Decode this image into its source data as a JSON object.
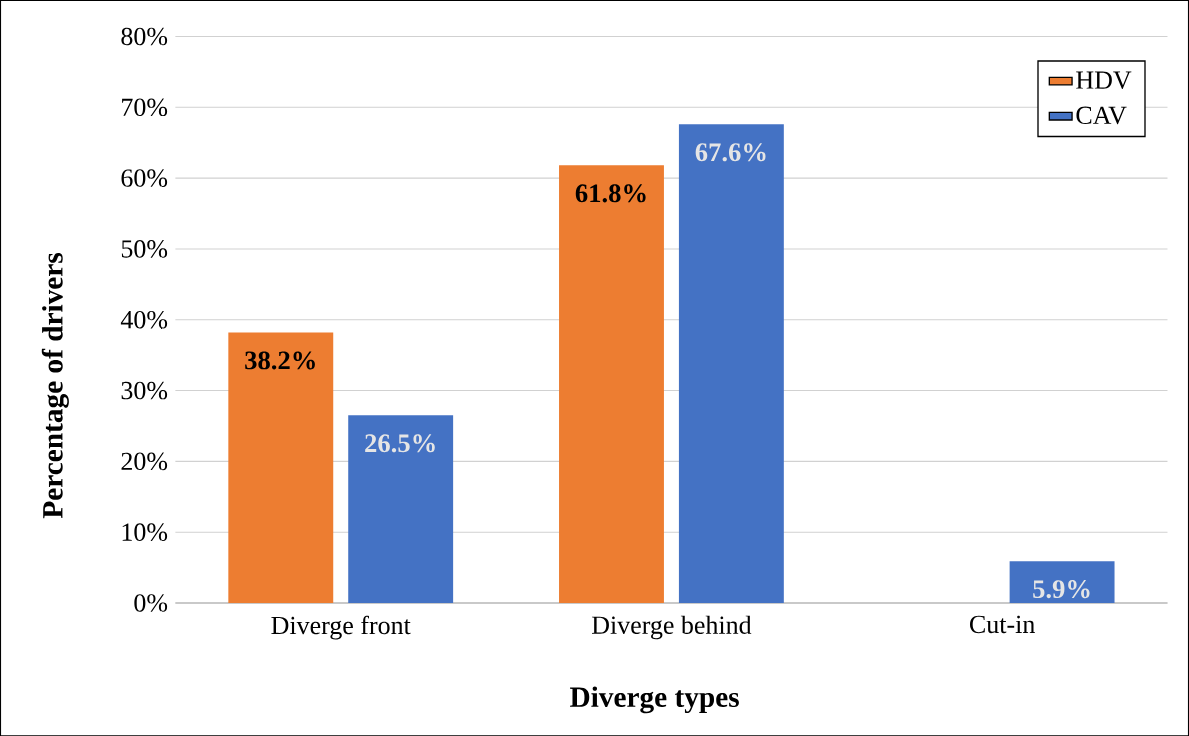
{
  "chart_data": {
    "type": "bar",
    "xlabel": "Diverge types",
    "ylabel": "Percentage of drivers",
    "categories": [
      "Diverge front",
      "Diverge behind",
      "Cut-in"
    ],
    "series": [
      {
        "name": "HDV",
        "color": "#ed7d31",
        "values": [
          38.2,
          61.8,
          null
        ],
        "value_labels": [
          "38.2%",
          "61.8%",
          null
        ]
      },
      {
        "name": "CAV",
        "color": "#4472c4",
        "values": [
          26.5,
          67.6,
          5.9
        ],
        "value_labels": [
          "26.5%",
          "67.6%",
          "5.9%"
        ]
      }
    ],
    "ylim": [
      0,
      80
    ],
    "yticks": [
      {
        "value": 0,
        "label": "0%"
      },
      {
        "value": 10,
        "label": "10%"
      },
      {
        "value": 20,
        "label": "20%"
      },
      {
        "value": 30,
        "label": "30%"
      },
      {
        "value": 40,
        "label": "40%"
      },
      {
        "value": 50,
        "label": "50%"
      },
      {
        "value": 60,
        "label": "60%"
      },
      {
        "value": 70,
        "label": "70%"
      },
      {
        "value": 80,
        "label": "80%"
      }
    ],
    "grid": "y",
    "legend": "top right"
  }
}
